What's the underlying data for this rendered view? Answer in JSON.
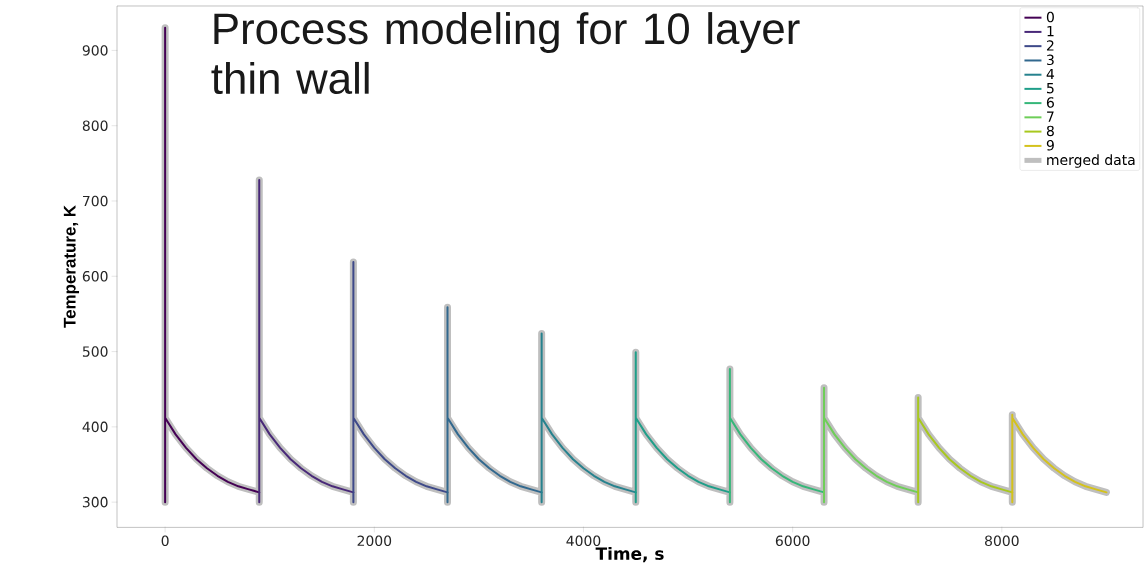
{
  "chart_data": {
    "type": "line",
    "title": "Process modeling for 10 layer thin wall",
    "xlabel": "Time, s",
    "ylabel": "Temperature, K",
    "xlim": [
      -460,
      9350
    ],
    "ylim": [
      267,
      959
    ],
    "xticks": [
      0,
      2000,
      4000,
      6000,
      8000
    ],
    "yticks": [
      300,
      400,
      500,
      600,
      700,
      800,
      900
    ],
    "legend": "top right",
    "grid": false,
    "series": [
      {
        "name": "0",
        "color": "#440154",
        "x": [
          0,
          0,
          0,
          100,
          200,
          300,
          400,
          500,
          600,
          700,
          800,
          900
        ],
        "values": [
          300,
          930,
          412,
          390,
          372,
          357,
          345,
          335,
          327,
          321,
          317,
          313
        ]
      },
      {
        "name": "1",
        "color": "#482878",
        "x": [
          900,
          900,
          900,
          1000,
          1100,
          1200,
          1300,
          1400,
          1500,
          1600,
          1700,
          1800
        ],
        "values": [
          300,
          728,
          412,
          390,
          372,
          357,
          345,
          335,
          327,
          321,
          317,
          313
        ]
      },
      {
        "name": "2",
        "color": "#3e4989",
        "x": [
          1800,
          1800,
          1800,
          1900,
          2000,
          2100,
          2200,
          2300,
          2400,
          2500,
          2600,
          2700
        ],
        "values": [
          300,
          619,
          412,
          390,
          372,
          357,
          345,
          335,
          327,
          321,
          317,
          313
        ]
      },
      {
        "name": "3",
        "color": "#31688e",
        "x": [
          2700,
          2700,
          2700,
          2800,
          2900,
          3000,
          3100,
          3200,
          3300,
          3400,
          3500,
          3600
        ],
        "values": [
          300,
          559,
          412,
          390,
          372,
          357,
          345,
          335,
          327,
          321,
          317,
          313
        ]
      },
      {
        "name": "4",
        "color": "#26828e",
        "x": [
          3600,
          3600,
          3600,
          3700,
          3800,
          3900,
          4000,
          4100,
          4200,
          4300,
          4400,
          4500
        ],
        "values": [
          300,
          524,
          412,
          390,
          372,
          357,
          345,
          335,
          327,
          321,
          317,
          313
        ]
      },
      {
        "name": "5",
        "color": "#1f9e89",
        "x": [
          4500,
          4500,
          4500,
          4600,
          4700,
          4800,
          4900,
          5000,
          5100,
          5200,
          5300,
          5400
        ],
        "values": [
          300,
          499,
          412,
          390,
          372,
          357,
          345,
          335,
          327,
          321,
          317,
          313
        ]
      },
      {
        "name": "6",
        "color": "#35b779",
        "x": [
          5400,
          5400,
          5400,
          5500,
          5600,
          5700,
          5800,
          5900,
          6000,
          6100,
          6200,
          6300
        ],
        "values": [
          300,
          477,
          412,
          390,
          372,
          357,
          345,
          335,
          327,
          321,
          317,
          313
        ]
      },
      {
        "name": "7",
        "color": "#6ece58",
        "x": [
          6300,
          6300,
          6300,
          6400,
          6500,
          6600,
          6700,
          6800,
          6900,
          7000,
          7100,
          7200
        ],
        "values": [
          300,
          452,
          412,
          390,
          372,
          357,
          345,
          335,
          327,
          321,
          317,
          313
        ]
      },
      {
        "name": "8",
        "color": "#a8c81e",
        "x": [
          7200,
          7200,
          7200,
          7300,
          7400,
          7500,
          7600,
          7700,
          7800,
          7900,
          8000,
          8100
        ],
        "values": [
          300,
          439,
          412,
          390,
          372,
          357,
          345,
          335,
          327,
          321,
          317,
          313
        ]
      },
      {
        "name": "9",
        "color": "#d4c21c",
        "x": [
          8100,
          8100,
          8100,
          8200,
          8300,
          8400,
          8500,
          8600,
          8700,
          8800,
          8900,
          9000
        ],
        "values": [
          300,
          416,
          412,
          390,
          372,
          357,
          345,
          335,
          327,
          321,
          317,
          313
        ]
      },
      {
        "name": "merged data",
        "color": "#bfbfbf",
        "x": [
          0,
          0,
          0,
          100,
          200,
          300,
          400,
          500,
          600,
          700,
          800,
          900,
          900,
          900,
          900,
          1000,
          1100,
          1200,
          1300,
          1400,
          1500,
          1600,
          1700,
          1800,
          1800,
          1800,
          1800,
          1900,
          2000,
          2100,
          2200,
          2300,
          2400,
          2500,
          2600,
          2700,
          2700,
          2700,
          2700,
          2800,
          2900,
          3000,
          3100,
          3200,
          3300,
          3400,
          3500,
          3600,
          3600,
          3600,
          3600,
          3700,
          3800,
          3900,
          4000,
          4100,
          4200,
          4300,
          4400,
          4500,
          4500,
          4500,
          4500,
          4600,
          4700,
          4800,
          4900,
          5000,
          5100,
          5200,
          5300,
          5400,
          5400,
          5400,
          5400,
          5500,
          5600,
          5700,
          5800,
          5900,
          6000,
          6100,
          6200,
          6300,
          6300,
          6300,
          6300,
          6400,
          6500,
          6600,
          6700,
          6800,
          6900,
          7000,
          7100,
          7200,
          7200,
          7200,
          7200,
          7300,
          7400,
          7500,
          7600,
          7700,
          7800,
          7900,
          8000,
          8100,
          8100,
          8100,
          8100,
          8200,
          8300,
          8400,
          8500,
          8600,
          8700,
          8800,
          8900,
          9000
        ],
        "values": [
          300,
          930,
          412,
          390,
          372,
          357,
          345,
          335,
          327,
          321,
          317,
          313,
          300,
          728,
          412,
          390,
          372,
          357,
          345,
          335,
          327,
          321,
          317,
          313,
          300,
          619,
          412,
          390,
          372,
          357,
          345,
          335,
          327,
          321,
          317,
          313,
          300,
          559,
          412,
          390,
          372,
          357,
          345,
          335,
          327,
          321,
          317,
          313,
          300,
          524,
          412,
          390,
          372,
          357,
          345,
          335,
          327,
          321,
          317,
          313,
          300,
          499,
          412,
          390,
          372,
          357,
          345,
          335,
          327,
          321,
          317,
          313,
          300,
          477,
          412,
          390,
          372,
          357,
          345,
          335,
          327,
          321,
          317,
          313,
          300,
          452,
          412,
          390,
          372,
          357,
          345,
          335,
          327,
          321,
          317,
          313,
          300,
          439,
          412,
          390,
          372,
          357,
          345,
          335,
          327,
          321,
          317,
          313,
          300,
          416,
          412,
          390,
          372,
          357,
          345,
          335,
          327,
          321,
          317,
          313
        ]
      }
    ]
  }
}
